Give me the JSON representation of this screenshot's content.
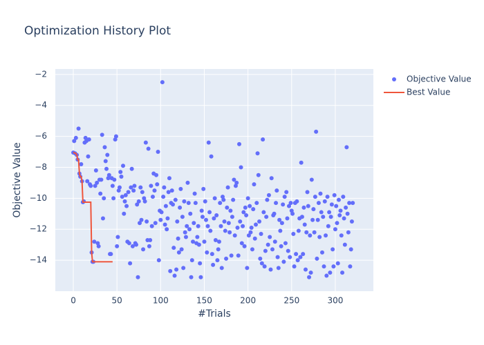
{
  "chart_data": {
    "type": "scatter",
    "title": "Optimization History Plot",
    "x_label": "#Trials",
    "y_label": "Objective Value",
    "xlim": [
      -20.6,
      343.6
    ],
    "ylim": [
      -16.0,
      -1.65
    ],
    "xticks": [
      0,
      50,
      100,
      150,
      200,
      250,
      300
    ],
    "yticks": [
      {
        "value": -2,
        "label": "−2"
      },
      {
        "value": -4,
        "label": "−4"
      },
      {
        "value": -6,
        "label": "−6"
      },
      {
        "value": -8,
        "label": "−8"
      },
      {
        "value": -10,
        "label": "−10"
      },
      {
        "value": -12,
        "label": "−12"
      },
      {
        "value": -14,
        "label": "−14"
      }
    ],
    "grid": true,
    "series": [
      {
        "name": "Objective Value",
        "color": "#636efa",
        "mode": "markers",
        "x": [
          0,
          1,
          2,
          3,
          4,
          5,
          6,
          7,
          8,
          9,
          10,
          11,
          12,
          13,
          14,
          15,
          16,
          17,
          18,
          19,
          20,
          21,
          22,
          23,
          24,
          25,
          26,
          27,
          28,
          29,
          30,
          31,
          32,
          33,
          34,
          35,
          36,
          37,
          38,
          39,
          40,
          41,
          42,
          43,
          44,
          45,
          46,
          47,
          48,
          49,
          50,
          51,
          52,
          53,
          54,
          55,
          56,
          57,
          58,
          59,
          60,
          61,
          62,
          63,
          64,
          65,
          66,
          67,
          68,
          69,
          70,
          71,
          72,
          73,
          74,
          75,
          76,
          77,
          78,
          79,
          80,
          81,
          82,
          83,
          84,
          85,
          86,
          87,
          88,
          89,
          90,
          91,
          92,
          93,
          94,
          95,
          96,
          97,
          98,
          99,
          100,
          101,
          102,
          103,
          104,
          105,
          106,
          107,
          108,
          109,
          110,
          111,
          112,
          113,
          114,
          115,
          116,
          117,
          118,
          119,
          120,
          121,
          122,
          123,
          124,
          125,
          126,
          127,
          128,
          129,
          130,
          131,
          132,
          133,
          134,
          135,
          136,
          137,
          138,
          139,
          140,
          141,
          142,
          143,
          144,
          145,
          146,
          147,
          148,
          149,
          150,
          151,
          152,
          153,
          154,
          155,
          156,
          157,
          158,
          159,
          160,
          161,
          162,
          163,
          164,
          165,
          166,
          167,
          168,
          169,
          170,
          171,
          172,
          173,
          174,
          175,
          176,
          177,
          178,
          179,
          180,
          181,
          182,
          183,
          184,
          185,
          186,
          187,
          188,
          189,
          190,
          191,
          192,
          193,
          194,
          195,
          196,
          197,
          198,
          199,
          200,
          201,
          202,
          203,
          204,
          205,
          206,
          207,
          208,
          209,
          210,
          211,
          212,
          213,
          214,
          215,
          216,
          217,
          218,
          219,
          220,
          221,
          222,
          223,
          224,
          225,
          226,
          227,
          228,
          229,
          230,
          231,
          232,
          233,
          234,
          235,
          236,
          237,
          238,
          239,
          240,
          241,
          242,
          243,
          244,
          245,
          246,
          247,
          248,
          249,
          250,
          251,
          252,
          253,
          254,
          255,
          256,
          257,
          258,
          259,
          260,
          261,
          262,
          263,
          264,
          265,
          266,
          267,
          268,
          269,
          270,
          271,
          272,
          273,
          274,
          275,
          276,
          277,
          278,
          279,
          280,
          281,
          282,
          283,
          284,
          285,
          286,
          287,
          288,
          289,
          290,
          291,
          292,
          293,
          294,
          295,
          296,
          297,
          298,
          299,
          300,
          301,
          302,
          303,
          304,
          305,
          306,
          307,
          308,
          309,
          310,
          311,
          312,
          313,
          314,
          315,
          316,
          317,
          318,
          319,
          320
        ],
        "values": [
          -7.05,
          -6.3,
          -7.1,
          -6.1,
          -7.2,
          -7.5,
          -5.5,
          -8.4,
          -8.6,
          -7.8,
          -8.9,
          -10.25,
          -10.2,
          -6.4,
          -6.1,
          -6.3,
          -8.9,
          -7.3,
          -6.2,
          -9.1,
          -9.2,
          -13.5,
          -14.1,
          -14.1,
          -12.8,
          -9.2,
          -8.2,
          -9,
          -12.9,
          -13.1,
          -8.8,
          -9.7,
          -8.8,
          -5.9,
          -11.3,
          -10,
          -6.7,
          -7.6,
          -8.1,
          -7.2,
          -8.7,
          -8.5,
          -13.6,
          -13.6,
          -8.7,
          -9.2,
          -10,
          -8.8,
          -6.2,
          -6,
          -13.1,
          -12.5,
          -9.5,
          -9.3,
          -8.3,
          -8.6,
          -9.9,
          -7.9,
          -11,
          -10.2,
          -9.8,
          -10.5,
          -12.8,
          -9.6,
          -12.9,
          -14.2,
          -9.3,
          -8.1,
          -13.1,
          -9.5,
          -9.2,
          -12.9,
          -13,
          -10.4,
          -15.1,
          -10.2,
          -11.6,
          -9.3,
          -11.4,
          -9.6,
          -13.3,
          -10,
          -10.2,
          -6.4,
          -11.5,
          -12.7,
          -6.8,
          -13.1,
          -12.7,
          -9.2,
          -11.8,
          -9.9,
          -8.4,
          -9.5,
          -11.6,
          -8.5,
          -9.1,
          -7,
          -14,
          -10.8,
          -11.4,
          -10.9,
          -2.5,
          -9.9,
          -9.3,
          -11.7,
          -10.5,
          -12,
          -11.3,
          -9.6,
          -8.7,
          -14.7,
          -10.3,
          -9.5,
          -10.4,
          -13.2,
          -15,
          -10.1,
          -14.6,
          -11.5,
          -12.6,
          -13.5,
          -10.6,
          -9.4,
          -13.3,
          -11.2,
          -14.5,
          -10.2,
          -12.2,
          -12.5,
          -11.8,
          -9,
          -10.3,
          -12,
          -11,
          -15.1,
          -14,
          -12.8,
          -11.6,
          -9.7,
          -10.3,
          -12.9,
          -12.5,
          -11.8,
          -13,
          -14.2,
          -15.1,
          -10.8,
          -11.2,
          -9.4,
          -12.8,
          -10.2,
          -11.4,
          -13.5,
          -11.8,
          -6.4,
          -10.9,
          -12.1,
          -7.3,
          -13.6,
          -14.3,
          -11.3,
          -10,
          -12.7,
          -11.1,
          -14,
          -13.3,
          -12.8,
          -10.3,
          -11.8,
          -14.5,
          -9.9,
          -10.1,
          -11.5,
          -12.1,
          -13.9,
          -10.6,
          -9.3,
          -11.6,
          -12.2,
          -10.8,
          -13.7,
          -11.2,
          -10.1,
          -8.8,
          -12.4,
          -9.2,
          -9,
          -11.9,
          -13.7,
          -6.5,
          -11.5,
          -8,
          -12.9,
          -11.8,
          -10.9,
          -13.1,
          -10.6,
          -11.1,
          -14.5,
          -10,
          -12.4,
          -10.5,
          -12.2,
          -11.9,
          -13.3,
          -10.7,
          -9.1,
          -12.6,
          -11.7,
          -10.3,
          -7.1,
          -8.5,
          -11.5,
          -13.9,
          -12.3,
          -14.2,
          -6.2,
          -10.9,
          -14.4,
          -13.4,
          -11.2,
          -10.1,
          -13,
          -9.8,
          -12.5,
          -14.6,
          -8.7,
          -13.3,
          -11.1,
          -11,
          -12.8,
          -10.3,
          -9.5,
          -13.8,
          -14.5,
          -11.4,
          -12.1,
          -13.1,
          -11.6,
          -10.4,
          -14.1,
          -9.9,
          -12.9,
          -9.6,
          -11.3,
          -13.4,
          -10.5,
          -13.8,
          -10.3,
          -10.8,
          -11,
          -12.3,
          -14.4,
          -10.3,
          -13.6,
          -10.2,
          -14,
          -12.1,
          -11.3,
          -13.8,
          -7.7,
          -11.2,
          -13.6,
          -10.6,
          -11.7,
          -14.6,
          -12.2,
          -9.6,
          -10.5,
          -15.1,
          -12.4,
          -14.8,
          -8.8,
          -11.4,
          -10.7,
          -12.2,
          -9.9,
          -5.7,
          -13.9,
          -11.4,
          -10.3,
          -12.5,
          -9.7,
          -10.9,
          -13.5,
          -11.2,
          -14.4,
          -10.2,
          -12.4,
          -15,
          -9.9,
          -11.8,
          -10.9,
          -14.8,
          -11.2,
          -10.4,
          -13.3,
          -14.4,
          -9.8,
          -12,
          -10.5,
          -11.6,
          -14.2,
          -10.1,
          -11.1,
          -10.8,
          -12.4,
          -14.8,
          -9.9,
          -11.3,
          -13,
          -10.6,
          -6.7,
          -11,
          -12.2,
          -10.3,
          -14.4,
          -13.3,
          -11.5,
          -10.3
        ]
      },
      {
        "name": "Best Value",
        "color": "#ef553b",
        "mode": "lines",
        "x": [
          0,
          1,
          2,
          3,
          4,
          5,
          6,
          7,
          8,
          9,
          10,
          11,
          12,
          13,
          14,
          15,
          16,
          17,
          18,
          19,
          20,
          21,
          22,
          23,
          24,
          25,
          26,
          27,
          28,
          29,
          30,
          31,
          32,
          33,
          34,
          35,
          36,
          37,
          38,
          39,
          40,
          41,
          42,
          43,
          44,
          45
        ],
        "values": [
          -7.05,
          -7.05,
          -7.1,
          -7.1,
          -7.2,
          -7.5,
          -7.5,
          -8.4,
          -8.6,
          -8.6,
          -8.9,
          -10.25,
          -10.25,
          -10.25,
          -10.25,
          -10.25,
          -10.25,
          -10.25,
          -10.25,
          -10.25,
          -10.25,
          -13.5,
          -14.1,
          -14.1,
          -14.1,
          -14.1,
          -14.1,
          -14.1,
          -14.1,
          -14.1,
          -14.1,
          -14.1,
          -14.1,
          -14.1,
          -14.1,
          -14.1,
          -14.1,
          -14.1,
          -14.1,
          -14.1,
          -14.1,
          -14.1,
          -14.1,
          -14.1,
          -14.1,
          -14.1
        ]
      }
    ]
  }
}
